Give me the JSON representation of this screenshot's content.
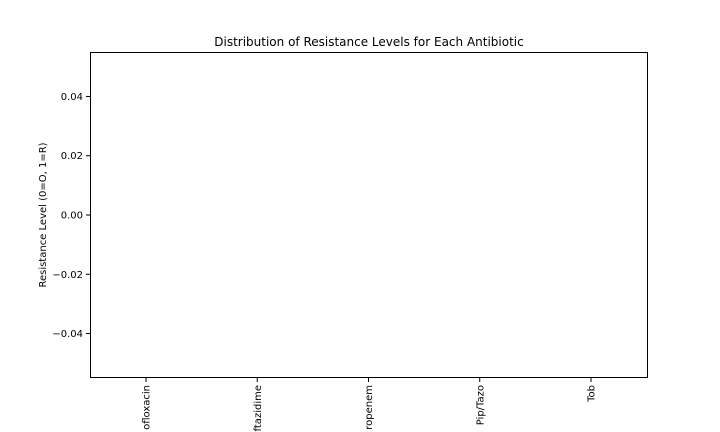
{
  "chart_data": {
    "type": "bar",
    "title": "Distribution of Resistance Levels for Each Antibiotic",
    "xlabel": "",
    "ylabel": "Resistance Level (0=O, 1=R)",
    "categories": [
      "ofloxacin",
      "ftazidime",
      "ropenem",
      "Pip/Tazo",
      "Tob"
    ],
    "values": [
      0,
      0,
      0,
      0,
      0
    ],
    "ylim": [
      -0.055,
      0.055
    ],
    "yticks": [
      0.04,
      0.02,
      0.0,
      -0.02,
      -0.04
    ],
    "ytick_labels": [
      "0.04",
      "0.02",
      "0.00",
      "−0.02",
      "−0.04"
    ],
    "grid": false,
    "colors": {
      "frame": "#000000",
      "background": "#ffffff",
      "bar": "#1f77b4"
    }
  }
}
